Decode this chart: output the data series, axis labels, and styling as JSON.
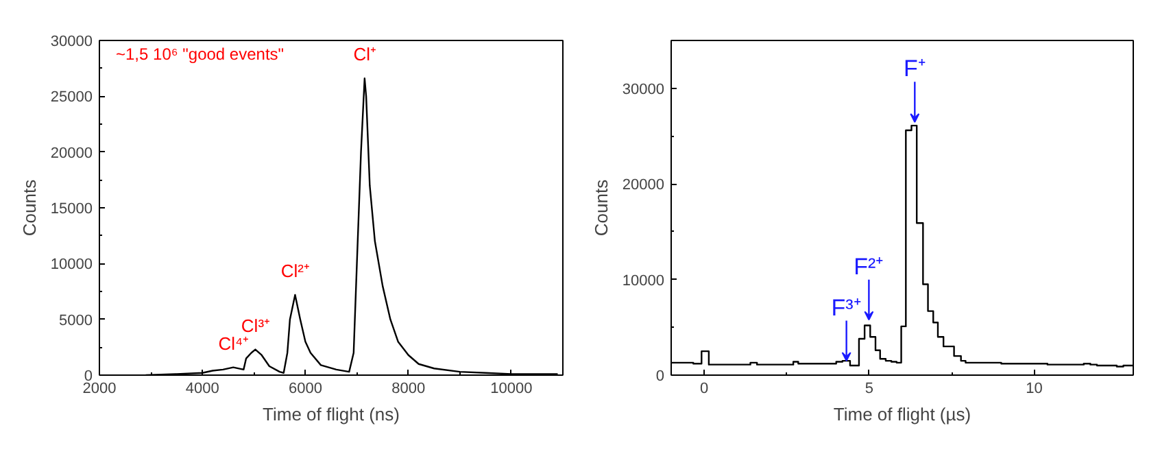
{
  "chart_data": [
    {
      "type": "line",
      "xlabel": "Time of flight (ns)",
      "ylabel": "Counts",
      "xlim": [
        2000,
        11000
      ],
      "ylim": [
        0,
        30000
      ],
      "xticks": [
        2000,
        4000,
        6000,
        8000,
        10000
      ],
      "yticks": [
        0,
        5000,
        10000,
        15000,
        20000,
        25000,
        30000
      ],
      "x": [
        2900,
        3500,
        4000,
        4200,
        4400,
        4600,
        4800,
        4850,
        4950,
        5028,
        5150,
        5300,
        5500,
        5578,
        5650,
        5700,
        5800,
        5900,
        6000,
        6100,
        6300,
        6600,
        6850,
        6937,
        7000,
        7080,
        7150,
        7180,
        7250,
        7350,
        7500,
        7650,
        7800,
        8000,
        8200,
        8500,
        9000,
        9500,
        10000,
        10900
      ],
      "series": [
        {
          "color": "#000000",
          "values": [
            0,
            100,
            200,
            400,
            500,
            700,
            500,
            1500,
            2000,
            2300,
            1800,
            800,
            300,
            200,
            2000,
            5000,
            7200,
            5000,
            3000,
            2000,
            900,
            500,
            300,
            2000,
            10000,
            20000,
            26600,
            25000,
            17000,
            12000,
            8000,
            5000,
            3000,
            1800,
            1000,
            600,
            300,
            200,
            100,
            100
          ]
        }
      ],
      "annotations": [
        "~1,5 10⁶ \"good events\"",
        {
          "text": "Cl⁺",
          "x": 7150,
          "y": 26600
        },
        {
          "text": "Cl²⁺",
          "x": 5800,
          "y": 7200
        },
        {
          "text": "Cl³⁺",
          "x": 5028,
          "y": 2300
        },
        {
          "text": "Cl⁴⁺",
          "x": 4600,
          "y": 700
        }
      ]
    },
    {
      "type": "step",
      "xlabel": "Time of flight (µs)",
      "ylabel": "Counts",
      "xlim": [
        -1,
        13
      ],
      "ylim": [
        0,
        35000
      ],
      "xticks": [
        0,
        5,
        10
      ],
      "yticks": [
        0,
        10000,
        20000,
        30000
      ],
      "x": [
        -1,
        -0.33,
        -0.08,
        0.14,
        1.4,
        1.6,
        2.7,
        2.85,
        3.8,
        4.0,
        4.19,
        4.42,
        4.69,
        4.86,
        5.03,
        5.19,
        5.33,
        5.5,
        5.67,
        5.83,
        5.97,
        6.11,
        6.28,
        6.44,
        6.63,
        6.78,
        6.94,
        7.08,
        7.25,
        7.57,
        7.78,
        7.92,
        8.5,
        9.0,
        9.6,
        10.0,
        10.4,
        11.5,
        11.7,
        11.9,
        12.5,
        12.7,
        13
      ],
      "series": [
        {
          "color": "#000000",
          "values": [
            1300,
            1200,
            2500,
            1100,
            1300,
            1100,
            1400,
            1200,
            1200,
            1400,
            1500,
            1000,
            3800,
            5200,
            4000,
            2600,
            1700,
            1500,
            1400,
            1300,
            5100,
            25600,
            26100,
            15900,
            9500,
            6700,
            5500,
            4000,
            3000,
            2000,
            1500,
            1300,
            1300,
            1200,
            1200,
            1200,
            1100,
            1200,
            1100,
            1000,
            900,
            1000,
            1000
          ]
        }
      ],
      "annotations": [
        {
          "text": "F⁺",
          "x": 6.38,
          "y": 26470
        },
        {
          "text": "F²⁺",
          "x": 4.99,
          "y": 5780
        },
        {
          "text": "F³⁺",
          "x": 4.31,
          "y": 1500
        }
      ]
    }
  ]
}
